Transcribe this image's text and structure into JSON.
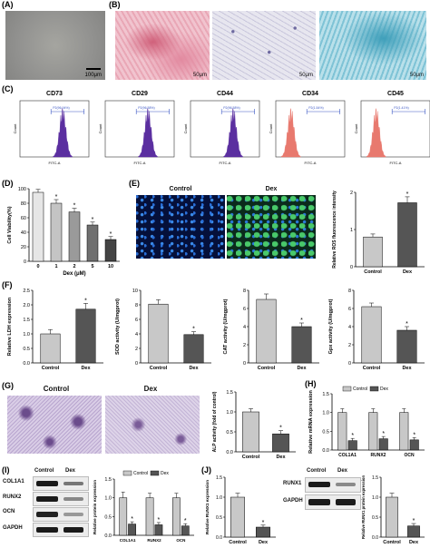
{
  "panels": {
    "A": {
      "label": "(A)",
      "scale_bar": "100μm"
    },
    "B": {
      "label": "(B)",
      "scale_bar": "50μm"
    },
    "C": {
      "label": "(C)"
    },
    "D": {
      "label": "(D)"
    },
    "E": {
      "label": "(E)",
      "image_titles": [
        "Control",
        "Dex"
      ]
    },
    "F": {
      "label": "(F)"
    },
    "G": {
      "label": "(G)",
      "image_titles": [
        "Control",
        "Dex"
      ]
    },
    "H": {
      "label": "(H)"
    },
    "I": {
      "label": "(I)",
      "rows": [
        "COL1A1",
        "RUNX2",
        "OCN",
        "GAPDH"
      ],
      "cols": [
        "Control",
        "Dex"
      ]
    },
    "J": {
      "label": "(J)",
      "rows": [
        "RUNX1",
        "GAPDH"
      ],
      "cols": [
        "Control",
        "Dex"
      ]
    }
  },
  "flow": {
    "markers": [
      {
        "name": "CD73",
        "gate": "P2(96.94%)",
        "color": "#5b2fa0"
      },
      {
        "name": "CD29",
        "gate": "P2(96.58%)",
        "color": "#5b2fa0"
      },
      {
        "name": "CD44",
        "gate": "P2(96.58%)",
        "color": "#5b2fa0"
      },
      {
        "name": "CD34",
        "gate": "P2(1.54%)",
        "color": "#e8796e"
      },
      {
        "name": "CD45",
        "gate": "P2(1.41%)",
        "color": "#e8796e"
      }
    ],
    "xlabel": "FITC-A",
    "ylabel": "Count"
  },
  "colors": {
    "light_bar": "#c8c8c8",
    "dark_bar": "#555555",
    "star": "*"
  },
  "chart_data": [
    {
      "id": "D",
      "type": "bar",
      "categories": [
        "0",
        "1",
        "2",
        "5",
        "10"
      ],
      "values": [
        95,
        80,
        68,
        50,
        30
      ],
      "errors": [
        4,
        5,
        5,
        4,
        4
      ],
      "sig": [
        "",
        "*",
        "*",
        "*",
        "*"
      ],
      "ylabel": "Cell Viability(%)",
      "xlabel": "Dex (μM)",
      "ylim": [
        0,
        100
      ],
      "yticks": [
        "0",
        "20",
        "40",
        "60",
        "80",
        "100"
      ]
    },
    {
      "id": "E",
      "type": "bar",
      "categories": [
        "Control",
        "Dex"
      ],
      "values": [
        1.0,
        2.15
      ],
      "errors": [
        0.1,
        0.2
      ],
      "sig": [
        "",
        "*"
      ],
      "ylabel": "Relative ROS fluorescence intensity",
      "ylim": [
        0,
        2.5
      ],
      "yticks": [
        "0",
        "1",
        "2"
      ]
    },
    {
      "id": "F1",
      "type": "bar",
      "categories": [
        "Control",
        "Dex"
      ],
      "values": [
        1.0,
        1.85
      ],
      "errors": [
        0.15,
        0.2
      ],
      "sig": [
        "",
        "*"
      ],
      "ylabel": "Relative LDH expression",
      "ylim": [
        0,
        2.5
      ],
      "yticks": [
        "0.0",
        "0.5",
        "1.0",
        "1.5",
        "2.0",
        "2.5"
      ]
    },
    {
      "id": "F2",
      "type": "bar",
      "categories": [
        "Control",
        "Dex"
      ],
      "values": [
        8.1,
        3.9
      ],
      "errors": [
        0.6,
        0.4
      ],
      "sig": [
        "",
        "*"
      ],
      "ylabel": "SOD activity (U/mgprot)",
      "ylim": [
        0,
        10
      ],
      "yticks": [
        "0",
        "2",
        "4",
        "6",
        "8",
        "10"
      ]
    },
    {
      "id": "F3",
      "type": "bar",
      "categories": [
        "Control",
        "Dex"
      ],
      "values": [
        7.0,
        4.0
      ],
      "errors": [
        0.6,
        0.4
      ],
      "sig": [
        "",
        "*"
      ],
      "ylabel": "CAT activity (U/mgprot)",
      "ylim": [
        0,
        8
      ],
      "yticks": [
        "0",
        "2",
        "4",
        "6",
        "8"
      ]
    },
    {
      "id": "F4",
      "type": "bar",
      "categories": [
        "Control",
        "Dex"
      ],
      "values": [
        6.2,
        3.6
      ],
      "errors": [
        0.4,
        0.4
      ],
      "sig": [
        "",
        "*"
      ],
      "ylabel": "Gpx activity (U/mgprot)",
      "ylim": [
        0,
        8
      ],
      "yticks": [
        "0",
        "2",
        "4",
        "6",
        "8"
      ]
    },
    {
      "id": "G",
      "type": "bar",
      "categories": [
        "Control",
        "Dex"
      ],
      "values": [
        1.0,
        0.45
      ],
      "errors": [
        0.08,
        0.08
      ],
      "sig": [
        "",
        "*"
      ],
      "ylabel": "ALP activity (fold of control)",
      "ylim": [
        0,
        1.5
      ],
      "yticks": [
        "0.0",
        "0.5",
        "1.0",
        "1.5"
      ]
    },
    {
      "id": "H",
      "type": "bar",
      "categories": [
        "COL1A1",
        "RUNX2",
        "OCN"
      ],
      "series": [
        {
          "name": "Control",
          "values": [
            1.0,
            1.0,
            1.0
          ],
          "errors": [
            0.1,
            0.1,
            0.1
          ]
        },
        {
          "name": "Dex",
          "values": [
            0.25,
            0.3,
            0.27
          ],
          "errors": [
            0.06,
            0.06,
            0.06
          ]
        }
      ],
      "sig": [
        "*",
        "*",
        "*"
      ],
      "ylabel": "Relative mRNA expression",
      "ylim": [
        0,
        1.5
      ],
      "yticks": [
        "0.0",
        "0.5",
        "1.0",
        "1.5"
      ]
    },
    {
      "id": "I",
      "type": "bar",
      "categories": [
        "COL1A1",
        "RUNX2",
        "OCN"
      ],
      "series": [
        {
          "name": "Control",
          "values": [
            1.0,
            1.0,
            1.0
          ],
          "errors": [
            0.15,
            0.12,
            0.12
          ]
        },
        {
          "name": "Dex",
          "values": [
            0.3,
            0.28,
            0.25
          ],
          "errors": [
            0.06,
            0.06,
            0.06
          ]
        }
      ],
      "sig": [
        "*",
        "*",
        "*"
      ],
      "ylabel": "Relative protein expression",
      "ylim": [
        0,
        1.5
      ],
      "yticks": [
        "0.0",
        "0.5",
        "1.0",
        "1.5"
      ]
    },
    {
      "id": "J1",
      "type": "bar",
      "categories": [
        "Control",
        "Dex"
      ],
      "values": [
        1.0,
        0.25
      ],
      "errors": [
        0.1,
        0.05
      ],
      "sig": [
        "",
        "*"
      ],
      "ylabel": "Relative RUNX1 expression",
      "ylim": [
        0,
        1.5
      ],
      "yticks": [
        "0.0",
        "0.5",
        "1.0",
        "1.5"
      ]
    },
    {
      "id": "J2",
      "type": "bar",
      "categories": [
        "Control",
        "Dex"
      ],
      "values": [
        1.0,
        0.28
      ],
      "errors": [
        0.1,
        0.06
      ],
      "sig": [
        "",
        "*"
      ],
      "ylabel": "Relative RUNX1 protein expression",
      "ylim": [
        0,
        1.5
      ],
      "yticks": [
        "0.0",
        "0.5",
        "1.0",
        "1.5"
      ]
    }
  ]
}
